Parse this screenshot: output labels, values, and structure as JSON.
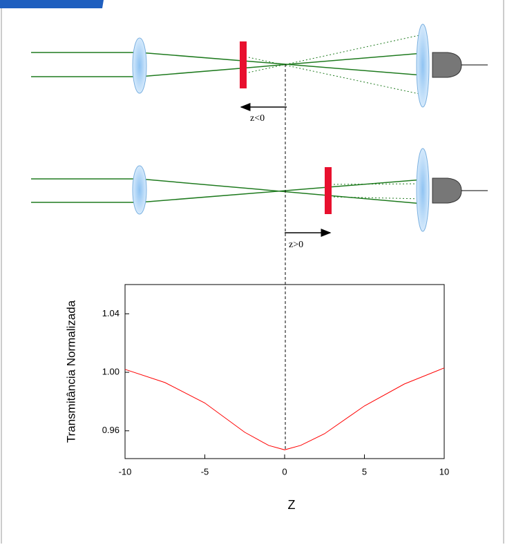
{
  "diagram": {
    "labels": [
      "z<0",
      "z>0"
    ]
  },
  "chart_data": {
    "type": "line",
    "x_label": "Z",
    "y_label": "Transmitância Normalizada",
    "x": [
      -10,
      -7.5,
      -5,
      -2.5,
      -1,
      0,
      1,
      2.5,
      5,
      7.5,
      10
    ],
    "series": [
      {
        "color": "#ff0000",
        "values": [
          1.002,
          0.993,
          0.979,
          0.959,
          0.95,
          0.947,
          0.95,
          0.958,
          0.977,
          0.992,
          1.003
        ]
      }
    ],
    "xlim": [
      -10,
      10
    ],
    "xticks": [
      -10,
      -5,
      0,
      5,
      10
    ],
    "ylim": [
      0.941,
      1.06
    ],
    "yticks": [
      0.96,
      {
        "value": 1,
        "label": "1.00"
      },
      1.04
    ]
  }
}
